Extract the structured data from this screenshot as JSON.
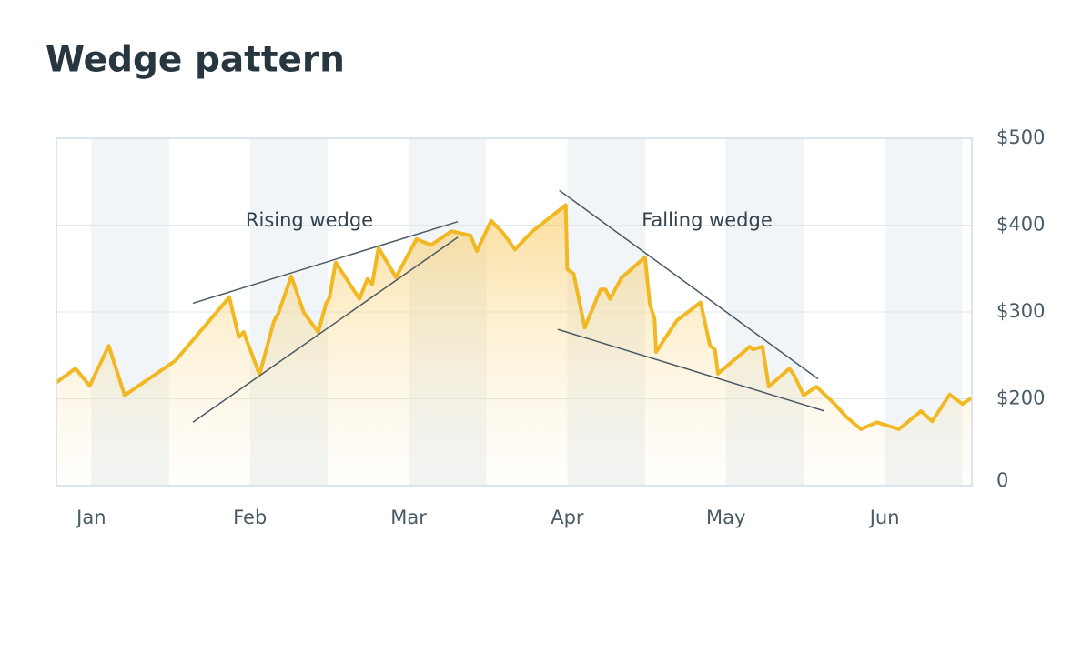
{
  "chart_data": {
    "type": "line",
    "title": "Wedge pattern",
    "x": [
      -0.22,
      -0.1,
      -0.01,
      0.11,
      0.21,
      0.53,
      0.87,
      0.93,
      0.96,
      1.06,
      1.15,
      1.18,
      1.26,
      1.34,
      1.43,
      1.48,
      1.5,
      1.54,
      1.69,
      1.74,
      1.77,
      1.81,
      1.92,
      2.05,
      2.14,
      2.27,
      2.39,
      2.43,
      2.52,
      2.59,
      2.67,
      2.78,
      2.99,
      3.0,
      3.04,
      3.11,
      3.21,
      3.24,
      3.27,
      3.34,
      3.49,
      3.52,
      3.55,
      3.56,
      3.69,
      3.84,
      3.9,
      3.93,
      3.95,
      4.15,
      4.17,
      4.23,
      4.27,
      4.4,
      4.43,
      4.49,
      4.57,
      4.68,
      4.76,
      4.85,
      4.95,
      5.09,
      5.23,
      5.3,
      5.41,
      5.49,
      5.55
    ],
    "series": [
      {
        "color": "#f2b824",
        "values": [
          219,
          235,
          215,
          261,
          204,
          244,
          317,
          271,
          277,
          228,
          289,
          299,
          341,
          299,
          277,
          310,
          316,
          357,
          315,
          338,
          332,
          374,
          340,
          384,
          377,
          393,
          388,
          370,
          405,
          392,
          372,
          393,
          423,
          349,
          344,
          282,
          326,
          326,
          315,
          339,
          363,
          309,
          292,
          254,
          290,
          311,
          261,
          257,
          229,
          260,
          257,
          260,
          214,
          235,
          227,
          204,
          214,
          195,
          179,
          165,
          173,
          165,
          186,
          174,
          205,
          194,
          201
        ]
      }
    ],
    "xlim": [
      -0.22,
      5.55
    ],
    "xticks": [
      {
        "value": 0,
        "label": "Jan"
      },
      {
        "value": 1,
        "label": "Feb"
      },
      {
        "value": 2,
        "label": "Mar"
      },
      {
        "value": 3,
        "label": "Apr"
      },
      {
        "value": 4,
        "label": "May"
      },
      {
        "value": 5,
        "label": "Jun"
      }
    ],
    "ylim": [
      100,
      500
    ],
    "yticks": [
      {
        "value": 200,
        "label": "$200"
      },
      {
        "value": 300,
        "label": "$300"
      },
      {
        "value": 400,
        "label": "$400"
      },
      {
        "value": 500,
        "label": "$500"
      }
    ],
    "y_floor_label": "0",
    "grid": true,
    "trend_lines": [
      {
        "x": [
          0.64,
          2.31
        ],
        "y": [
          310,
          404
        ]
      },
      {
        "x": [
          0.64,
          2.31
        ],
        "y": [
          173,
          386
        ]
      },
      {
        "x": [
          2.95,
          4.58
        ],
        "y": [
          440,
          223
        ]
      },
      {
        "x": [
          2.94,
          4.62
        ],
        "y": [
          280,
          186
        ]
      }
    ],
    "annotations": [
      "Rising wedge",
      "Falling wedge"
    ]
  }
}
